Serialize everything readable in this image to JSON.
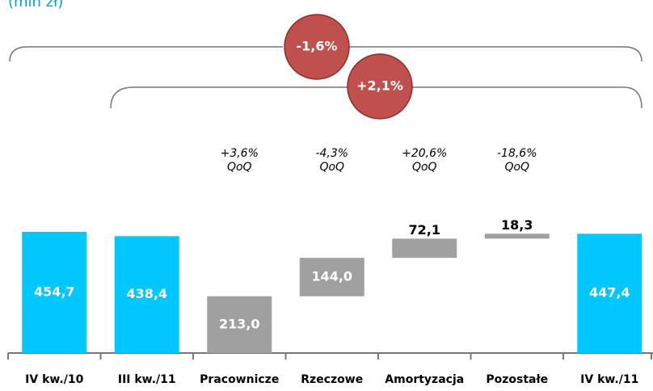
{
  "chart_data": {
    "type": "waterfall",
    "title": "(mln zł)",
    "categories": [
      "IV kw./10",
      "III kw./11",
      "Pracownicze",
      "Rzeczowe",
      "Amortyzacja",
      "Pozostałe",
      "IV kw./11"
    ],
    "values": [
      454.7,
      438.4,
      213.0,
      144.0,
      72.1,
      18.3,
      447.4
    ],
    "value_labels": [
      "454,7",
      "438,4",
      "213,0",
      "144,0",
      "72,1",
      "18,3",
      "447,4"
    ],
    "measure": [
      "total",
      "total",
      "relative",
      "relative",
      "relative",
      "relative",
      "total"
    ],
    "total_color": "#00c8ff",
    "relative_color": "#a0a0a0",
    "change_labels": [
      null,
      null,
      "+3,6%",
      "-4,3%",
      "+20,6%",
      "-18,6%",
      null
    ],
    "change_unit": "QoQ",
    "bracket_labels": [
      "-1,6%",
      "+2,1%"
    ]
  }
}
